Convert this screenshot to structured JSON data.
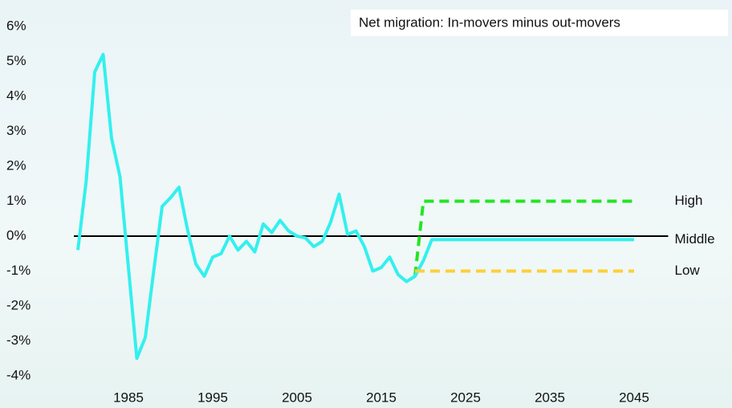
{
  "chart_data": {
    "type": "line",
    "annotation": "Net migration: In-movers minus out-movers",
    "x": [
      1979,
      1980,
      1981,
      1982,
      1983,
      1984,
      1985,
      1986,
      1987,
      1988,
      1989,
      1990,
      1991,
      1992,
      1993,
      1994,
      1995,
      1996,
      1997,
      1998,
      1999,
      2000,
      2001,
      2002,
      2003,
      2004,
      2005,
      2006,
      2007,
      2008,
      2009,
      2010,
      2011,
      2012,
      2013,
      2014,
      2015,
      2016,
      2017,
      2018,
      2019,
      2020,
      2021,
      2022,
      2023,
      2024,
      2025,
      2026,
      2027,
      2028,
      2029,
      2030,
      2031,
      2032,
      2033,
      2034,
      2035,
      2036,
      2037,
      2038,
      2039,
      2040,
      2041,
      2042,
      2043,
      2044,
      2045
    ],
    "series": [
      {
        "name": "High",
        "color": "#22e622",
        "style": "dashed",
        "values": [
          null,
          null,
          null,
          null,
          null,
          null,
          null,
          null,
          null,
          null,
          null,
          null,
          null,
          null,
          null,
          null,
          null,
          null,
          null,
          null,
          null,
          null,
          null,
          null,
          null,
          null,
          null,
          null,
          null,
          null,
          null,
          null,
          null,
          null,
          null,
          null,
          null,
          null,
          null,
          null,
          -1.15,
          1.0,
          1.0,
          1.0,
          1.0,
          1.0,
          1.0,
          1.0,
          1.0,
          1.0,
          1.0,
          1.0,
          1.0,
          1.0,
          1.0,
          1.0,
          1.0,
          1.0,
          1.0,
          1.0,
          1.0,
          1.0,
          1.0,
          1.0,
          1.0,
          1.0,
          1.0
        ]
      },
      {
        "name": "Middle",
        "color": "#33f0ee",
        "style": "solid",
        "values": [
          -0.4,
          1.6,
          4.7,
          5.2,
          2.8,
          1.7,
          -0.9,
          -3.5,
          -2.9,
          -1.0,
          0.85,
          1.1,
          1.4,
          0.2,
          -0.8,
          -1.15,
          -0.6,
          -0.5,
          0.0,
          -0.4,
          -0.15,
          -0.45,
          0.35,
          0.1,
          0.45,
          0.15,
          0.0,
          -0.05,
          -0.3,
          -0.15,
          0.4,
          1.2,
          0.05,
          0.15,
          -0.3,
          -1.0,
          -0.9,
          -0.6,
          -1.1,
          -1.3,
          -1.15,
          -0.7,
          -0.1,
          -0.1,
          -0.1,
          -0.1,
          -0.1,
          -0.1,
          -0.1,
          -0.1,
          -0.1,
          -0.1,
          -0.1,
          -0.1,
          -0.1,
          -0.1,
          -0.1,
          -0.1,
          -0.1,
          -0.1,
          -0.1,
          -0.1,
          -0.1,
          -0.1,
          -0.1,
          -0.1,
          -0.1
        ]
      },
      {
        "name": "Low",
        "color": "#fcd03a",
        "style": "dashed",
        "values": [
          null,
          null,
          null,
          null,
          null,
          null,
          null,
          null,
          null,
          null,
          null,
          null,
          null,
          null,
          null,
          null,
          null,
          null,
          null,
          null,
          null,
          null,
          null,
          null,
          null,
          null,
          null,
          null,
          null,
          null,
          null,
          null,
          null,
          null,
          null,
          null,
          null,
          null,
          null,
          null,
          -1.0,
          -1.0,
          -1.0,
          -1.0,
          -1.0,
          -1.0,
          -1.0,
          -1.0,
          -1.0,
          -1.0,
          -1.0,
          -1.0,
          -1.0,
          -1.0,
          -1.0,
          -1.0,
          -1.0,
          -1.0,
          -1.0,
          -1.0,
          -1.0,
          -1.0,
          -1.0,
          -1.0,
          -1.0,
          -1.0,
          -1.0
        ]
      }
    ],
    "xlim": [
      1975,
      2050
    ],
    "xticks": [
      1985,
      1995,
      2005,
      2015,
      2025,
      2035,
      2045
    ],
    "ylim": [
      -4,
      6
    ],
    "yticks": [
      {
        "value": -4,
        "label": "-4%"
      },
      {
        "value": -3,
        "label": "-3%"
      },
      {
        "value": -2,
        "label": "-2%"
      },
      {
        "value": -1,
        "label": "-1%"
      },
      {
        "value": 0,
        "label": "0%"
      },
      {
        "value": 1,
        "label": "1%"
      },
      {
        "value": 2,
        "label": "2%"
      },
      {
        "value": 3,
        "label": "3%"
      },
      {
        "value": 4,
        "label": "4%"
      },
      {
        "value": 5,
        "label": "5%"
      },
      {
        "value": 6,
        "label": "6%"
      }
    ],
    "grid": false,
    "legend": "line-end"
  }
}
